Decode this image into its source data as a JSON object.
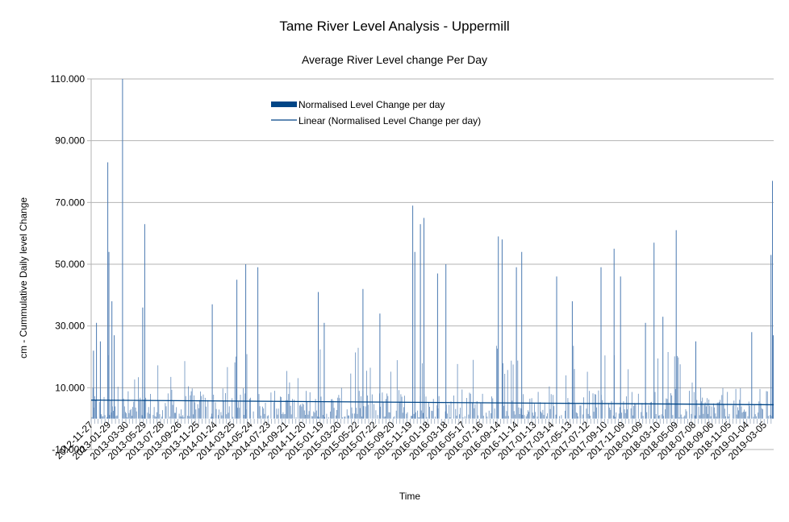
{
  "chart_data": {
    "type": "bar",
    "title": "Tame River Level Analysis - Uppermill",
    "subtitle": "Average River Level change Per Day",
    "xlabel": "Time",
    "ylabel": "cm - Cummulative Daily level Change",
    "ylim": [
      -10,
      110
    ],
    "yticks": [
      "-10.000",
      "10.000",
      "30.000",
      "50.000",
      "70.000",
      "90.000",
      "110.000"
    ],
    "ytick_values": [
      -10,
      10,
      30,
      50,
      70,
      90,
      110
    ],
    "grid": true,
    "legend_position": "top-left",
    "colors": {
      "bars": "#4a79b1",
      "trend": "#004586",
      "grid": "#b3b3b3",
      "axis": "#b3b3b3"
    },
    "x_tick_labels": [
      "2012-11-27",
      "2013-01-29",
      "2013-03-30",
      "2013-05-29",
      "2013-07-28",
      "2013-09-26",
      "2013-11-25",
      "2014-01-24",
      "2014-03-25",
      "2014-05-24",
      "2014-07-23",
      "2014-09-21",
      "2014-11-20",
      "2015-01-19",
      "2015-03-20",
      "2015-05-22",
      "2015-07-22",
      "2015-09-20",
      "2015-11-19",
      "2016-01-18",
      "2016-03-18",
      "2016-05-17",
      "2016-07-16",
      "2016-09-14",
      "2016-11-14",
      "2017-01-13",
      "2017-03-14",
      "2017-05-13",
      "2017-07-12",
      "2017-09-10",
      "2017-11-09",
      "2018-01-09",
      "2018-03-10",
      "2018-05-09",
      "2018-07-08",
      "2018-09-06",
      "2018-11-05",
      "2019-01-04",
      "2019-03-05"
    ],
    "series": [
      {
        "name": "Normalised Level Change per day",
        "type": "bar"
      },
      {
        "name": "Linear (Normalised Level Change per day)",
        "type": "trendline",
        "start_value": 6.0,
        "end_value": 4.5
      }
    ],
    "bar_profile": {
      "x_range": [
        "2012-11-27",
        "2019-03-21"
      ],
      "baseline": 0,
      "typical_range": [
        0,
        10
      ],
      "spikes": [
        {
          "date": "2012-12-05",
          "value": 22
        },
        {
          "date": "2012-12-15",
          "value": 31
        },
        {
          "date": "2012-12-28",
          "value": 25
        },
        {
          "date": "2013-01-22",
          "value": 83
        },
        {
          "date": "2013-01-26",
          "value": 54
        },
        {
          "date": "2013-02-05",
          "value": 38
        },
        {
          "date": "2013-02-13",
          "value": 27
        },
        {
          "date": "2013-03-13",
          "value": 110
        },
        {
          "date": "2013-05-27",
          "value": 63
        },
        {
          "date": "2013-05-20",
          "value": 36
        },
        {
          "date": "2014-01-10",
          "value": 37
        },
        {
          "date": "2014-04-03",
          "value": 45
        },
        {
          "date": "2014-05-03",
          "value": 50
        },
        {
          "date": "2014-06-13",
          "value": 49
        },
        {
          "date": "2015-01-03",
          "value": 41
        },
        {
          "date": "2015-01-23",
          "value": 31
        },
        {
          "date": "2015-06-03",
          "value": 42
        },
        {
          "date": "2015-07-30",
          "value": 34
        },
        {
          "date": "2015-11-18",
          "value": 69
        },
        {
          "date": "2015-11-25",
          "value": 54
        },
        {
          "date": "2015-12-14",
          "value": 63
        },
        {
          "date": "2015-12-26",
          "value": 65
        },
        {
          "date": "2016-02-10",
          "value": 47
        },
        {
          "date": "2016-03-09",
          "value": 50
        },
        {
          "date": "2016-09-02",
          "value": 59
        },
        {
          "date": "2016-09-15",
          "value": 58
        },
        {
          "date": "2016-11-02",
          "value": 49
        },
        {
          "date": "2016-11-20",
          "value": 54
        },
        {
          "date": "2017-03-18",
          "value": 46
        },
        {
          "date": "2017-05-10",
          "value": 38
        },
        {
          "date": "2017-08-15",
          "value": 49
        },
        {
          "date": "2017-09-28",
          "value": 55
        },
        {
          "date": "2017-10-20",
          "value": 46
        },
        {
          "date": "2018-01-12",
          "value": 31
        },
        {
          "date": "2018-02-10",
          "value": 57
        },
        {
          "date": "2018-03-12",
          "value": 33
        },
        {
          "date": "2018-04-26",
          "value": 61
        },
        {
          "date": "2018-07-01",
          "value": 25
        },
        {
          "date": "2019-01-06",
          "value": 28
        },
        {
          "date": "2019-03-12",
          "value": 53
        },
        {
          "date": "2019-03-17",
          "value": 77
        },
        {
          "date": "2019-03-20",
          "value": 27
        }
      ]
    }
  }
}
